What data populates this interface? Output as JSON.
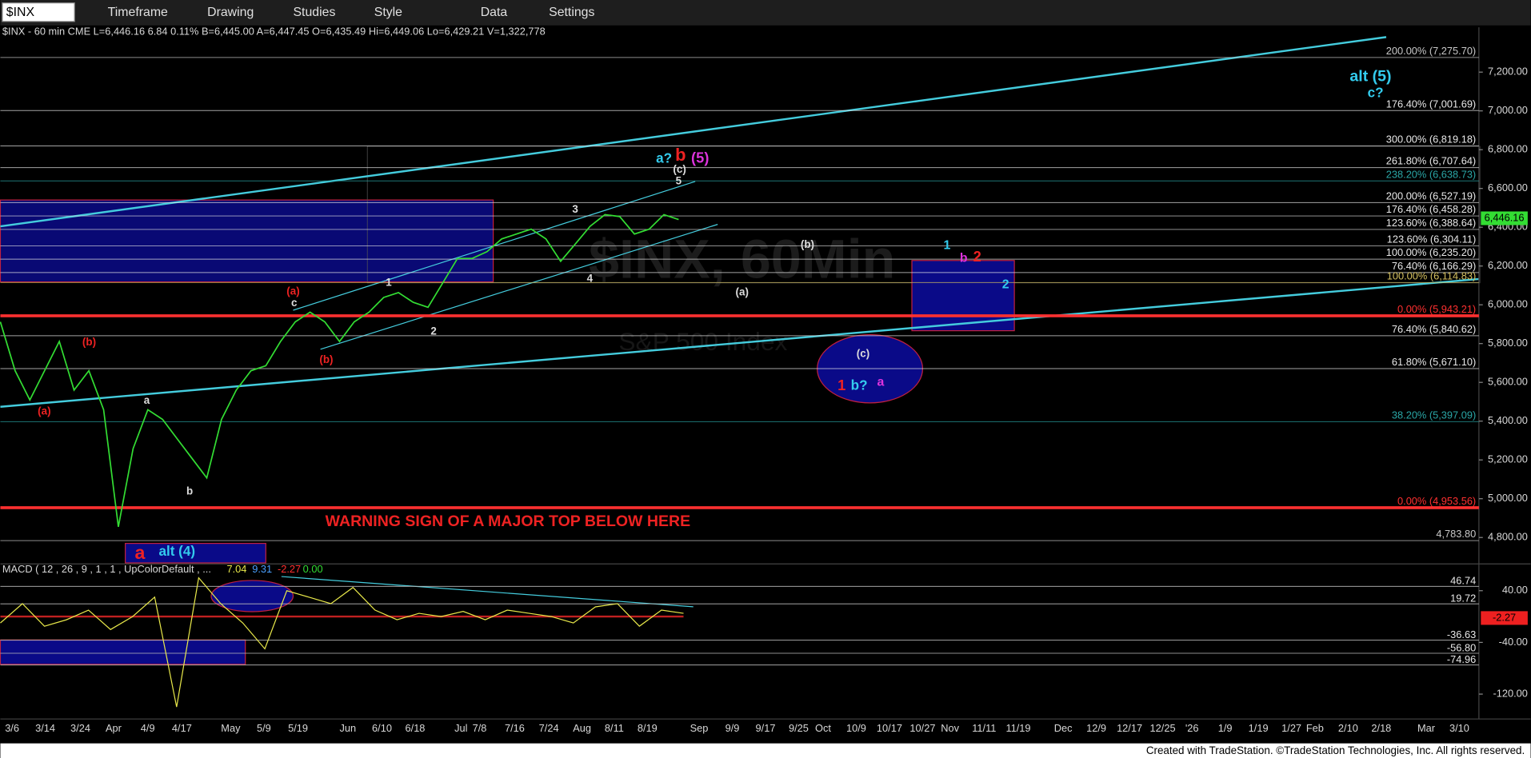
{
  "toolbar": {
    "symbol": "$INX",
    "menus": [
      "Timeframe",
      "Drawing",
      "Studies",
      "Style",
      "Data",
      "Settings"
    ]
  },
  "header": "$INX - 60 min CME L=6,446.16 6.84 0.11% B=6,445.00 A=6,447.45 O=6,435.49 Hi=6,449.06 Lo=6,429.21 V=1,322,778",
  "watermark": [
    "$INX, 60Min",
    "S&P 500 Index"
  ],
  "price_chart": {
    "ylim": [
      4669,
      7431
    ],
    "yticks": [
      {
        "value": 7200,
        "label": "7,200.00"
      },
      {
        "value": 7000,
        "label": "7,000.00"
      },
      {
        "value": 6800,
        "label": "6,800.00"
      },
      {
        "value": 6600,
        "label": "6,600.00"
      },
      {
        "value": 6400,
        "label": "6,400.00"
      },
      {
        "value": 6200,
        "label": "6,200.00"
      },
      {
        "value": 6000,
        "label": "6,000.00"
      },
      {
        "value": 5800,
        "label": "5,800.00"
      },
      {
        "value": 5600,
        "label": "5,600.00"
      },
      {
        "value": 5400,
        "label": "5,400.00"
      },
      {
        "value": 5200,
        "label": "5,200.00"
      },
      {
        "value": 5000,
        "label": "5,000.00"
      },
      {
        "value": 4800,
        "label": "4,800.00"
      }
    ],
    "levels": [
      {
        "value": 7275.7,
        "label": "200.00% (7,275.70)",
        "color": "#c8c8c8"
      },
      {
        "value": 7001.69,
        "label": "176.40% (7,001.69)",
        "color": "#e8e8e8"
      },
      {
        "value": 6819.18,
        "label": "300.00% (6,819.18)",
        "color": "#e8e8e8"
      },
      {
        "value": 6707.64,
        "label": "261.80% (6,707.64)",
        "color": "#e8e8e8"
      },
      {
        "value": 6638.73,
        "label": "238.20% (6,638.73)",
        "color": "#2aa6a6"
      },
      {
        "value": 6527.19,
        "label": "200.00% (6,527.19)",
        "color": "#e8e8e8"
      },
      {
        "value": 6458.28,
        "label": "176.40% (6,458.28)",
        "color": "#e8e8e8"
      },
      {
        "value": 6388.64,
        "label": "123.60% (6,388.64)",
        "color": "#e8e8e8"
      },
      {
        "value": 6304.11,
        "label": "123.60% (6,304.11)",
        "color": "#e8e8e8"
      },
      {
        "value": 6235.2,
        "label": "100.00% (6,235.20)",
        "color": "#e8e8e8"
      },
      {
        "value": 6166.29,
        "label": "76.40% (6,166.29)",
        "color": "#e8e8e8"
      },
      {
        "value": 6114.83,
        "label": "100.00% (6,114.83)",
        "color": "#d4c060"
      },
      {
        "value": 5943.21,
        "label": "0.00% (5,943.21)",
        "color": "#ff3030"
      },
      {
        "value": 5840.62,
        "label": "76.40% (5,840.62)",
        "color": "#e8e8e8"
      },
      {
        "value": 5671.1,
        "label": "61.80% (5,671.10)",
        "color": "#e8e8e8"
      },
      {
        "value": 5397.09,
        "label": "38.20% (5,397.09)",
        "color": "#2aa6a6"
      },
      {
        "value": 4953.56,
        "label": "0.00% (4,953.56)",
        "color": "#ff3030"
      },
      {
        "value": 4783.8,
        "label": "4,783.80",
        "color": "#c8c8c8"
      }
    ],
    "last_price": {
      "value": 6446.16,
      "label": "6,446.16"
    },
    "price": {
      "color": "#33dd33",
      "values": [
        5912,
        5660,
        5509,
        5660,
        5811,
        5560,
        5660,
        5459,
        4855,
        5258,
        5459,
        5409,
        5308,
        5208,
        5107,
        5409,
        5560,
        5660,
        5686,
        5811,
        5912,
        5962,
        5912,
        5811,
        5912,
        5962,
        6038,
        6063,
        6013,
        5987,
        6113,
        6239,
        6239,
        6274,
        6340,
        6365,
        6390,
        6340,
        6224,
        6314,
        6405,
        6465,
        6455,
        6365,
        6390,
        6465,
        6440
      ]
    },
    "annotations": [
      {
        "text": "alt (5)",
        "color": "#33ccee"
      },
      {
        "text": "c?",
        "color": "#33ccee"
      },
      {
        "text": "a?",
        "color": "#33ccee"
      },
      {
        "text": "b",
        "color": "#ee2222"
      },
      {
        "text": "(5)",
        "color": "#dd33dd"
      },
      {
        "text": "(c)",
        "color": "#dddddd"
      },
      {
        "text": "5",
        "color": "#dddddd"
      },
      {
        "text": "3",
        "color": "#dddddd"
      },
      {
        "text": "4",
        "color": "#dddddd"
      },
      {
        "text": "1",
        "color": "#dddddd"
      },
      {
        "text": "2",
        "color": "#dddddd"
      },
      {
        "text": "(b)",
        "color": "#dddddd"
      },
      {
        "text": "(a)",
        "color": "#dddddd"
      },
      {
        "text": "1",
        "color": "#33ccee"
      },
      {
        "text": "b",
        "color": "#dd33dd"
      },
      {
        "text": "2",
        "color": "#ee2222"
      },
      {
        "text": "2",
        "color": "#33ccee"
      },
      {
        "text": "(c)",
        "color": "#dddddd"
      },
      {
        "text": "1",
        "color": "#ee2222"
      },
      {
        "text": "b?",
        "color": "#33ccee"
      },
      {
        "text": "a",
        "color": "#dd33dd"
      },
      {
        "text": "(a)",
        "color": "#ee2222"
      },
      {
        "text": "c",
        "color": "#dddddd"
      },
      {
        "text": "(b)",
        "color": "#ee2222"
      },
      {
        "text": "(b)",
        "color": "#ee2222"
      },
      {
        "text": "(a)",
        "color": "#ee2222"
      },
      {
        "text": "a",
        "color": "#dddddd"
      },
      {
        "text": "b",
        "color": "#dddddd"
      },
      {
        "text": "a",
        "color": "#ee2222"
      },
      {
        "text": "alt (4)",
        "color": "#33ccee"
      },
      {
        "text": "WARNING SIGN OF A MAJOR TOP BELOW HERE",
        "color": "#ee2222"
      }
    ]
  },
  "macd": {
    "title": "MACD ( 12 , 26 , 9 , 1 , 1 , UpColorDefault , ...",
    "readings": [
      {
        "value": 7.04,
        "color": "#e8e84a"
      },
      {
        "value": 9.31,
        "color": "#4aa0ff"
      },
      {
        "value": -2.27,
        "color": "#ff3030"
      },
      {
        "value": 0.0,
        "label": "0.00",
        "color": "#33dd33"
      }
    ],
    "ylim": [
      -158.5,
      78.5
    ],
    "yticks": [
      {
        "value": 40,
        "label": "40.00"
      },
      {
        "value": -40,
        "label": "-40.00"
      },
      {
        "value": -120,
        "label": "-120.00"
      }
    ],
    "levels": [
      46.74,
      19.72,
      -36.63,
      -56.8,
      -74.96
    ],
    "level_labels": [
      "46.74",
      "19.72",
      "-36.63",
      "-56.80",
      "-74.96"
    ],
    "last": {
      "value": -2.27
    },
    "line": {
      "color": "#e8e84a",
      "values": [
        -10,
        20,
        -15,
        -5,
        10,
        -20,
        0,
        30,
        -140,
        60,
        20,
        -10,
        -50,
        40,
        30,
        20,
        45,
        10,
        -5,
        5,
        0,
        8,
        -5,
        10,
        5,
        0,
        -10,
        15,
        20,
        -15,
        10,
        5
      ]
    }
  },
  "x_axis": [
    "3/6",
    "3/14",
    "3/24",
    "Apr",
    "4/9",
    "4/17",
    "May",
    "5/9",
    "5/19",
    "Jun",
    "6/10",
    "6/18",
    "Jul",
    "7/8",
    "7/16",
    "7/24",
    "Aug",
    "8/11",
    "8/19",
    "Sep",
    "9/9",
    "9/17",
    "9/25",
    "Oct",
    "10/9",
    "10/17",
    "10/27",
    "Nov",
    "11/11",
    "11/19",
    "Dec",
    "12/9",
    "12/17",
    "12/25",
    "'26",
    "1/9",
    "1/19",
    "1/27",
    "Feb",
    "2/10",
    "2/18",
    "Mar",
    "3/10"
  ],
  "footer": "Created with TradeStation. ©TradeStation Technologies, Inc. All rights reserved."
}
